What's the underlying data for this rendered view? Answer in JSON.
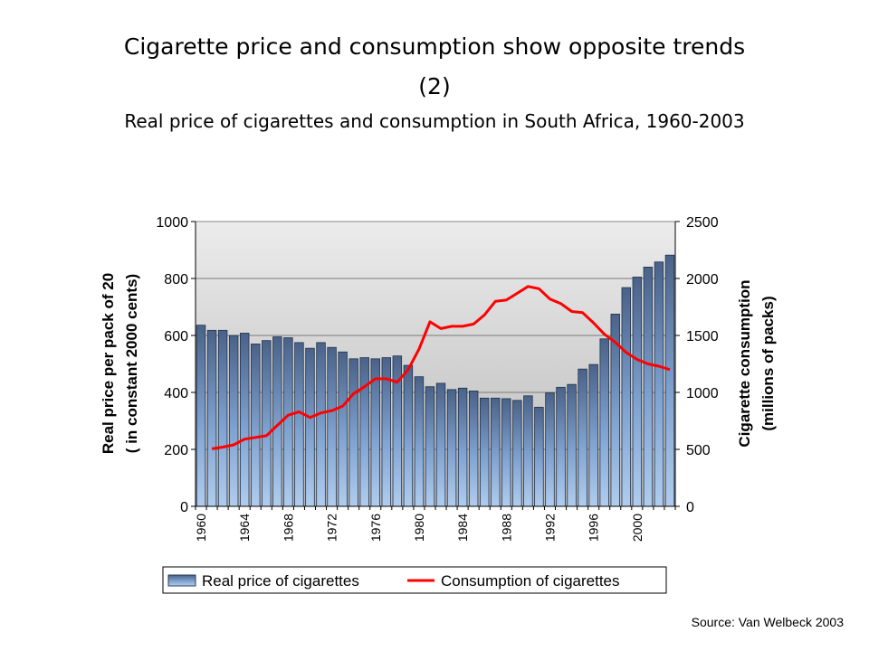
{
  "title_line1": "Cigarette price and consumption show  opposite trends",
  "title_line2": "(2)",
  "subtitle": "Real price of cigarettes and consumption in South Africa, 1960-2003",
  "source": "Source: Van Welbeck 2003",
  "chart_data": {
    "type": "bar",
    "combo": "bar + line (dual axis)",
    "ylabel_left_line1": "Real price per pack of 20",
    "ylabel_left_line2": "( in constant 2000 cents)",
    "ylabel_right_line1": "Cigarette consumption",
    "ylabel_right_line2": "(millions of packs)",
    "ylim_left": [
      0,
      1000
    ],
    "ylim_right": [
      0,
      2500
    ],
    "left_ticks": [
      "0",
      "200",
      "400",
      "600",
      "800",
      "1000"
    ],
    "right_ticks": [
      "0",
      "500",
      "1000",
      "1500",
      "2000",
      "2500"
    ],
    "x_ticks": [
      "1960",
      "1964",
      "1968",
      "1972",
      "1976",
      "1980",
      "1984",
      "1988",
      "1992",
      "1996",
      "2000"
    ],
    "grid": true,
    "legend_position": "bottom",
    "years": [
      1960,
      1961,
      1962,
      1963,
      1964,
      1965,
      1966,
      1967,
      1968,
      1969,
      1970,
      1971,
      1972,
      1973,
      1974,
      1975,
      1976,
      1977,
      1978,
      1979,
      1980,
      1981,
      1982,
      1983,
      1984,
      1985,
      1986,
      1987,
      1988,
      1989,
      1990,
      1991,
      1992,
      1993,
      1994,
      1995,
      1996,
      1997,
      1998,
      1999,
      2000,
      2001,
      2002,
      2003
    ],
    "series": [
      {
        "name": "Real price of cigarettes",
        "axis": "left",
        "type": "bar",
        "color": "#5b7bad",
        "values": [
          636,
          618,
          618,
          600,
          608,
          570,
          582,
          595,
          592,
          575,
          555,
          575,
          558,
          542,
          518,
          522,
          518,
          522,
          528,
          495,
          455,
          420,
          432,
          410,
          415,
          405,
          380,
          380,
          378,
          372,
          388,
          348,
          398,
          418,
          428,
          482,
          498,
          588,
          675,
          768,
          805,
          840,
          858,
          882
        ]
      },
      {
        "name": "Consumption of cigarettes",
        "axis": "right",
        "type": "line",
        "color": "#ff0000",
        "values": [
          null,
          505,
          520,
          540,
          590,
          605,
          620,
          710,
          800,
          830,
          780,
          820,
          840,
          880,
          990,
          1050,
          1120,
          1120,
          1090,
          1200,
          1380,
          1620,
          1560,
          1580,
          1580,
          1600,
          1680,
          1800,
          1810,
          1870,
          1930,
          1910,
          1820,
          1780,
          1710,
          1700,
          1610,
          1510,
          1440,
          1350,
          1290,
          1250,
          1230,
          1200
        ]
      }
    ]
  }
}
